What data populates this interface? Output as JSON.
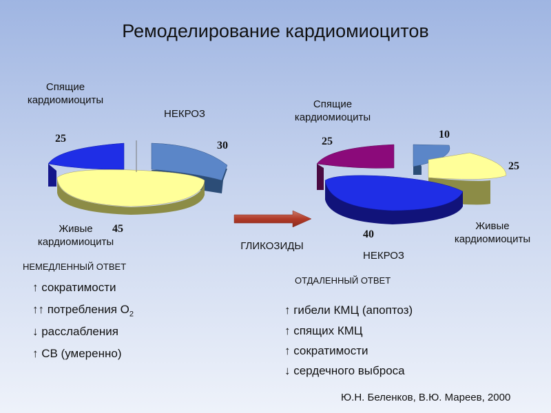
{
  "title": "Ремоделирование кардиомиоцитов",
  "chart_data": [
    {
      "type": "pie",
      "categories": [
        "НЕКРОЗ",
        "Живые кардиомиоциты",
        "Спящие кардиомиоциты"
      ],
      "values": [
        30,
        45,
        25
      ],
      "colors": [
        "#5b86c8",
        "#ffff99",
        "#1f2ee6"
      ]
    },
    {
      "type": "pie",
      "categories": [
        "НЕКРОЗ",
        "Живые кардиомиоциты",
        "Спящие кардиомиоциты",
        ""
      ],
      "values": [
        40,
        25,
        25,
        10
      ],
      "colors": [
        "#1f2ee6",
        "#ffff99",
        "#8b0a7a",
        "#5b86c8"
      ]
    }
  ],
  "labels": {
    "sleeping": "Спящие\nкардиомиоциты",
    "necrosis": "НЕКРОЗ",
    "alive": "Живые\nкардиомиоциты",
    "glycosides": "ГЛИКОЗИДЫ"
  },
  "immediate": {
    "header": "НЕМЕДЛЕННЫЙ ОТВЕТ",
    "items": [
      "↑ сократимости",
      "↑↑ потребления О",
      "↓ расслабления",
      "↑ СВ (умеренно)"
    ],
    "subscript": "2"
  },
  "delayed": {
    "header": "ОТДАЛЕННЫЙ ОТВЕТ",
    "items": [
      "↑ гибели КМЦ (апоптоз)",
      "↑ спящих КМЦ",
      "↑ сократимости",
      "↓ сердечного выброса"
    ]
  },
  "source": "Ю.Н. Беленков, В.Ю. Мареев, 2000"
}
